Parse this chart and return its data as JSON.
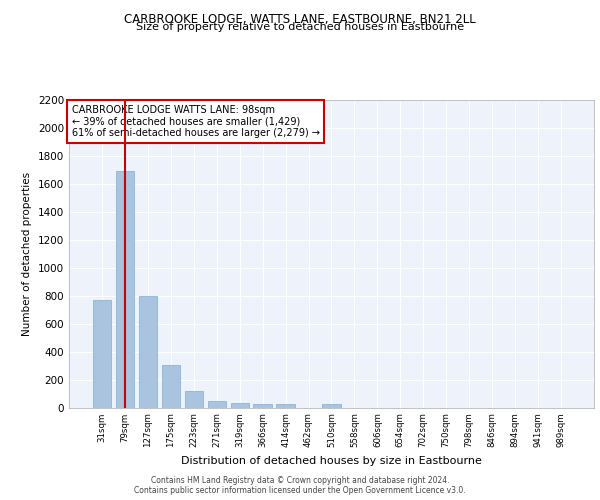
{
  "title1": "CARBROOKE LODGE, WATTS LANE, EASTBOURNE, BN21 2LL",
  "title2": "Size of property relative to detached houses in Eastbourne",
  "xlabel": "Distribution of detached houses by size in Eastbourne",
  "ylabel": "Number of detached properties",
  "categories": [
    "31sqm",
    "79sqm",
    "127sqm",
    "175sqm",
    "223sqm",
    "271sqm",
    "319sqm",
    "366sqm",
    "414sqm",
    "462sqm",
    "510sqm",
    "558sqm",
    "606sqm",
    "654sqm",
    "702sqm",
    "750sqm",
    "798sqm",
    "846sqm",
    "894sqm",
    "941sqm",
    "989sqm"
  ],
  "values": [
    770,
    1690,
    800,
    305,
    115,
    45,
    35,
    28,
    22,
    0,
    22,
    0,
    0,
    0,
    0,
    0,
    0,
    0,
    0,
    0,
    0
  ],
  "bar_color": "#aac4e0",
  "bar_edge_color": "#7aafd4",
  "vline_x": 1.0,
  "vline_color": "#cc0000",
  "annotation_text": "CARBROOKE LODGE WATTS LANE: 98sqm\n← 39% of detached houses are smaller (1,429)\n61% of semi-detached houses are larger (2,279) →",
  "annotation_box_color": "#ffffff",
  "annotation_box_edge": "#cc0000",
  "ylim": [
    0,
    2200
  ],
  "yticks": [
    0,
    200,
    400,
    600,
    800,
    1000,
    1200,
    1400,
    1600,
    1800,
    2000,
    2200
  ],
  "bg_color": "#eef2fb",
  "grid_color": "#ffffff",
  "footer_line1": "Contains HM Land Registry data © Crown copyright and database right 2024.",
  "footer_line2": "Contains public sector information licensed under the Open Government Licence v3.0."
}
